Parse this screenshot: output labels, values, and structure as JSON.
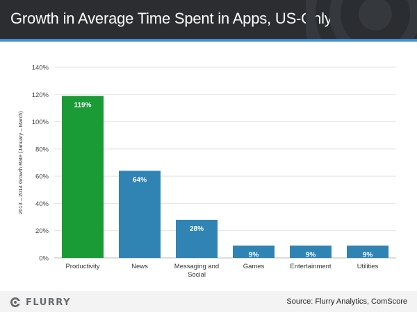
{
  "header": {
    "title": "Growth in Average Time Spent in Apps, US-Only"
  },
  "footer": {
    "logo_text": "FLURRY",
    "source": "Source: Flurry Analytics, ComScore"
  },
  "colors": {
    "highlight": "#1a9b35",
    "bar": "#2f84b4",
    "header_bg": "#2b2d30",
    "stripe": "#3d8fcf"
  },
  "chart_data": {
    "type": "bar",
    "categories": [
      "Productivity",
      "News",
      "Messaging and Social",
      "Games",
      "Entertainment",
      "Utilities"
    ],
    "category_lines": [
      [
        "Productivity"
      ],
      [
        "News"
      ],
      [
        "Messaging and",
        "Social"
      ],
      [
        "Games"
      ],
      [
        "Entertainment"
      ],
      [
        "Utilities"
      ]
    ],
    "values": [
      119,
      64,
      28,
      9,
      9,
      9
    ],
    "data_labels": [
      "119%",
      "64%",
      "28%",
      "9%",
      "9%",
      "9%"
    ],
    "highlight_index": 0,
    "ylabel": "2013 – 2014 Growth Rate (January – March)",
    "ylim": [
      0,
      140
    ],
    "yticks": [
      0,
      20,
      40,
      60,
      80,
      100,
      120,
      140
    ],
    "ytick_labels": [
      "0%",
      "20%",
      "40%",
      "60%",
      "80%",
      "100%",
      "120%",
      "140%"
    ],
    "grid": true
  }
}
